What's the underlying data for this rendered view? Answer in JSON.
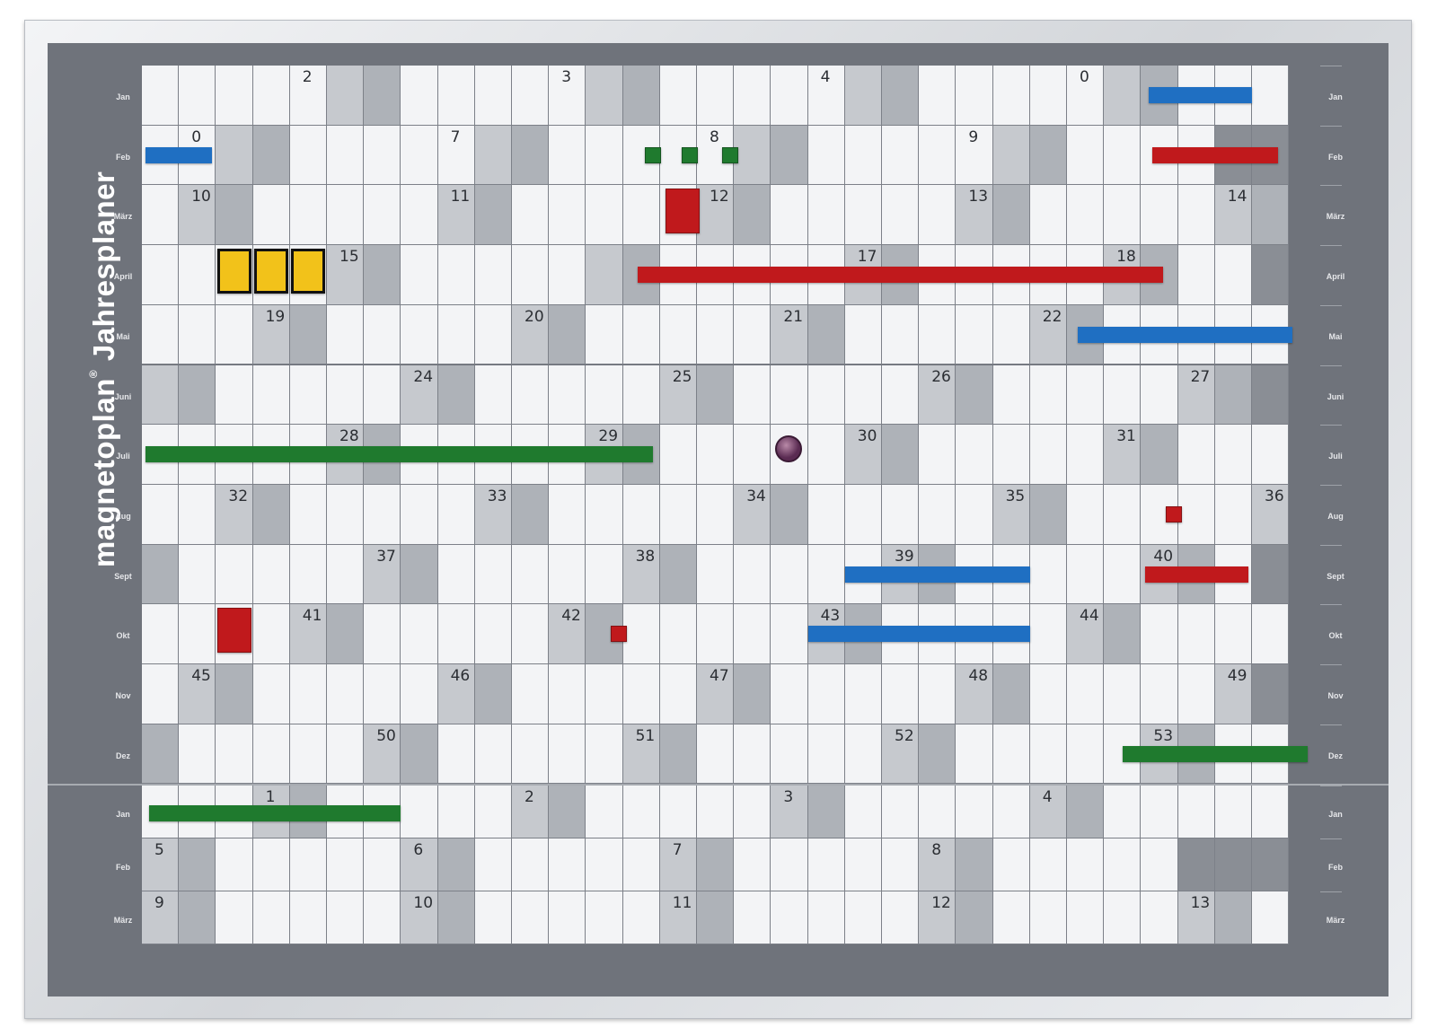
{
  "board": {
    "brand": "magnetoplan",
    "brand_mark": "®",
    "product": "Jahresplaner"
  },
  "month_labels": [
    "Jan",
    "Feb",
    "März",
    "April",
    "Mai",
    "Juni",
    "Juli",
    "Aug",
    "Sept",
    "Okt",
    "Nov",
    "Dez",
    "Jan",
    "Feb",
    "März"
  ],
  "week_labels": [
    {
      "row": 0,
      "col": 4,
      "text": "2"
    },
    {
      "row": 0,
      "col": 11,
      "text": "3"
    },
    {
      "row": 0,
      "col": 18,
      "text": "4"
    },
    {
      "row": 0,
      "col": 25,
      "text": "0"
    },
    {
      "row": 1,
      "col": 1,
      "text": "0"
    },
    {
      "row": 1,
      "col": 8,
      "text": "7"
    },
    {
      "row": 1,
      "col": 15,
      "text": "8"
    },
    {
      "row": 1,
      "col": 22,
      "text": "9"
    },
    {
      "row": 2,
      "col": 1,
      "text": "10"
    },
    {
      "row": 2,
      "col": 8,
      "text": "11"
    },
    {
      "row": 2,
      "col": 15,
      "text": "12"
    },
    {
      "row": 2,
      "col": 22,
      "text": "13"
    },
    {
      "row": 2,
      "col": 29,
      "text": "14"
    },
    {
      "row": 3,
      "col": 5,
      "text": "15"
    },
    {
      "row": 3,
      "col": 19,
      "text": "17"
    },
    {
      "row": 3,
      "col": 26,
      "text": "18"
    },
    {
      "row": 4,
      "col": 3,
      "text": "19"
    },
    {
      "row": 4,
      "col": 10,
      "text": "20"
    },
    {
      "row": 4,
      "col": 17,
      "text": "21"
    },
    {
      "row": 4,
      "col": 24,
      "text": "22"
    },
    {
      "row": 5,
      "col": 7,
      "text": "24"
    },
    {
      "row": 5,
      "col": 14,
      "text": "25"
    },
    {
      "row": 5,
      "col": 21,
      "text": "26"
    },
    {
      "row": 5,
      "col": 28,
      "text": "27"
    },
    {
      "row": 6,
      "col": 5,
      "text": "28"
    },
    {
      "row": 6,
      "col": 12,
      "text": "29"
    },
    {
      "row": 6,
      "col": 19,
      "text": "30"
    },
    {
      "row": 6,
      "col": 26,
      "text": "31"
    },
    {
      "row": 7,
      "col": 2,
      "text": "32"
    },
    {
      "row": 7,
      "col": 9,
      "text": "33"
    },
    {
      "row": 7,
      "col": 16,
      "text": "34"
    },
    {
      "row": 7,
      "col": 23,
      "text": "35"
    },
    {
      "row": 7,
      "col": 30,
      "text": "36"
    },
    {
      "row": 8,
      "col": 6,
      "text": "37"
    },
    {
      "row": 8,
      "col": 13,
      "text": "38"
    },
    {
      "row": 8,
      "col": 20,
      "text": "39"
    },
    {
      "row": 8,
      "col": 27,
      "text": "40"
    },
    {
      "row": 9,
      "col": 4,
      "text": "41"
    },
    {
      "row": 9,
      "col": 11,
      "text": "42"
    },
    {
      "row": 9,
      "col": 18,
      "text": "43"
    },
    {
      "row": 9,
      "col": 25,
      "text": "44"
    },
    {
      "row": 10,
      "col": 1,
      "text": "45"
    },
    {
      "row": 10,
      "col": 8,
      "text": "46"
    },
    {
      "row": 10,
      "col": 15,
      "text": "47"
    },
    {
      "row": 10,
      "col": 22,
      "text": "48"
    },
    {
      "row": 10,
      "col": 29,
      "text": "49"
    },
    {
      "row": 11,
      "col": 6,
      "text": "50"
    },
    {
      "row": 11,
      "col": 13,
      "text": "51"
    },
    {
      "row": 11,
      "col": 20,
      "text": "52"
    },
    {
      "row": 11,
      "col": 27,
      "text": "53"
    },
    {
      "row": 12,
      "col": 3,
      "text": "1"
    },
    {
      "row": 12,
      "col": 10,
      "text": "2"
    },
    {
      "row": 12,
      "col": 17,
      "text": "3"
    },
    {
      "row": 12,
      "col": 24,
      "text": "4"
    },
    {
      "row": 13,
      "col": 0,
      "text": "5"
    },
    {
      "row": 13,
      "col": 7,
      "text": "6"
    },
    {
      "row": 13,
      "col": 14,
      "text": "7"
    },
    {
      "row": 13,
      "col": 21,
      "text": "8"
    },
    {
      "row": 14,
      "col": 0,
      "text": "9"
    },
    {
      "row": 14,
      "col": 7,
      "text": "10"
    },
    {
      "row": 14,
      "col": 14,
      "text": "11"
    },
    {
      "row": 14,
      "col": 21,
      "text": "12"
    },
    {
      "row": 14,
      "col": 28,
      "text": "13"
    }
  ],
  "colors": {
    "cell": "#f3f4f6",
    "weekend": "#c6c9ce",
    "sunday": "#aeb2b8",
    "red": "#c0191c",
    "blue": "#1f6fc2",
    "green": "#1f7a2e",
    "yellow": "#f2c21a",
    "purple": "#5a2b52"
  },
  "magnets": {
    "bars": [
      {
        "row": 0,
        "c0": 27.2,
        "c1": 30.0,
        "color": "blue"
      },
      {
        "row": 1,
        "c0": 0.1,
        "c1": 1.9,
        "color": "blue"
      },
      {
        "row": 1,
        "c0": 27.3,
        "c1": 30.7,
        "color": "red"
      },
      {
        "row": 3,
        "c0": 13.4,
        "c1": 27.6,
        "color": "red"
      },
      {
        "row": 4,
        "c0": 25.3,
        "c1": 31.1,
        "color": "blue"
      },
      {
        "row": 6,
        "c0": 0.1,
        "c1": 13.8,
        "color": "green"
      },
      {
        "row": 8,
        "c0": 19.0,
        "c1": 24.0,
        "color": "blue"
      },
      {
        "row": 8,
        "c0": 27.1,
        "c1": 29.9,
        "color": "red"
      },
      {
        "row": 9,
        "c0": 18.0,
        "c1": 24.0,
        "color": "blue"
      },
      {
        "row": 11,
        "c0": 26.5,
        "c1": 31.5,
        "color": "green"
      },
      {
        "row": 12,
        "c0": 0.2,
        "c1": 7.0,
        "color": "green"
      }
    ],
    "squares": [
      {
        "row": 1,
        "col": 13.3,
        "color": "green",
        "size": 18
      },
      {
        "row": 1,
        "col": 14.3,
        "color": "green",
        "size": 18
      },
      {
        "row": 1,
        "col": 15.4,
        "color": "green",
        "size": 18
      },
      {
        "row": 2,
        "col": 14.1,
        "color": "red",
        "size": 38,
        "tall": true
      },
      {
        "row": 3,
        "col": 2.0,
        "color": "yellow",
        "size": 38,
        "tall": true
      },
      {
        "row": 3,
        "col": 3.0,
        "color": "yellow",
        "size": 38,
        "tall": true
      },
      {
        "row": 3,
        "col": 4.0,
        "color": "yellow",
        "size": 38,
        "tall": true
      },
      {
        "row": 7,
        "col": 27.4,
        "color": "red",
        "size": 18
      },
      {
        "row": 9,
        "col": 2.0,
        "color": "red",
        "size": 38,
        "tall": true
      },
      {
        "row": 9,
        "col": 12.4,
        "color": "red",
        "size": 18
      }
    ],
    "pins": [
      {
        "row": 6,
        "col": 17.4,
        "color": "purple"
      }
    ]
  }
}
